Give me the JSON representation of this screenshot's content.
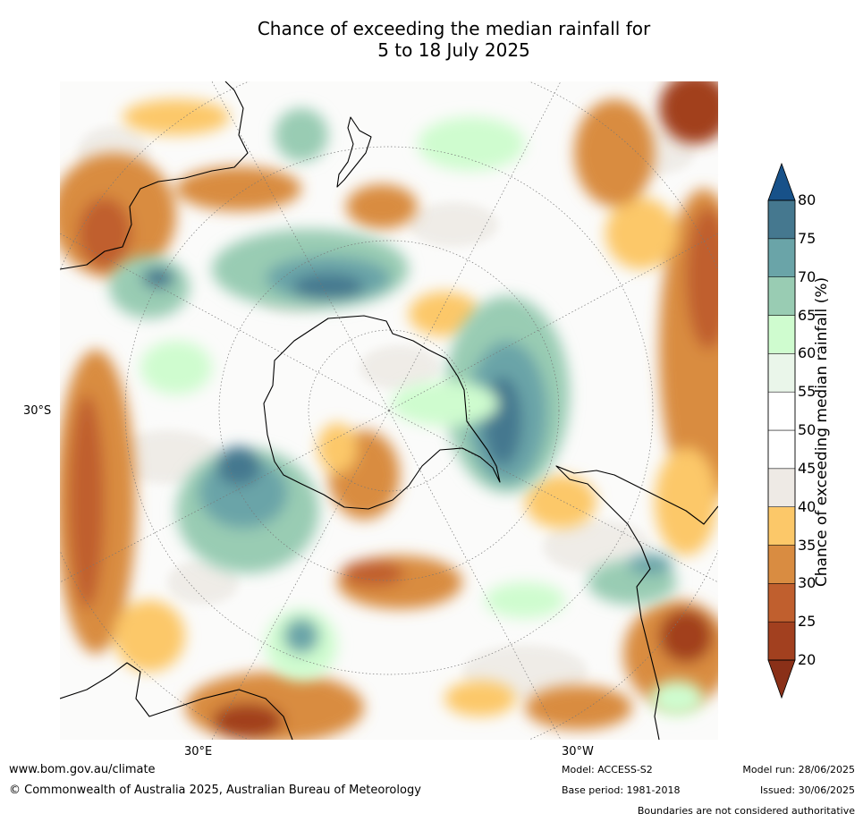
{
  "title_line1": "Chance of exceeding the median rainfall for",
  "title_line2": "5 to 18 July 2025",
  "axis": {
    "lat_30s": "30°S",
    "lon_30e": "30°E",
    "lon_30w": "30°W"
  },
  "colorbar": {
    "label": "Chance of exceeding median rainfall (%)",
    "ticks": [
      "20",
      "25",
      "30",
      "35",
      "40",
      "45",
      "50",
      "55",
      "60",
      "65",
      "70",
      "75",
      "80"
    ],
    "bins": [
      "#a2401f",
      "#c05f2e",
      "#d98c41",
      "#fcc869",
      "#eeeae5",
      "#ffffff",
      "#ffffff",
      "#eaf6ea",
      "#cffccf",
      "#99ccb3",
      "#6aa4a8",
      "#45788f"
    ],
    "under_color": "#8a3018",
    "over_color": "#175189"
  },
  "footer": {
    "url": "www.bom.gov.au/climate",
    "copyright": "© Commonwealth of Australia 2025, Australian Bureau of Meteorology",
    "model": "Model: ACCESS-S2",
    "base_period": "Base period: 1981-2018",
    "model_run": "Model run: 28/06/2025",
    "issued": "Issued: 30/06/2025",
    "disclaimer": "Boundaries are not considered authoritative"
  }
}
